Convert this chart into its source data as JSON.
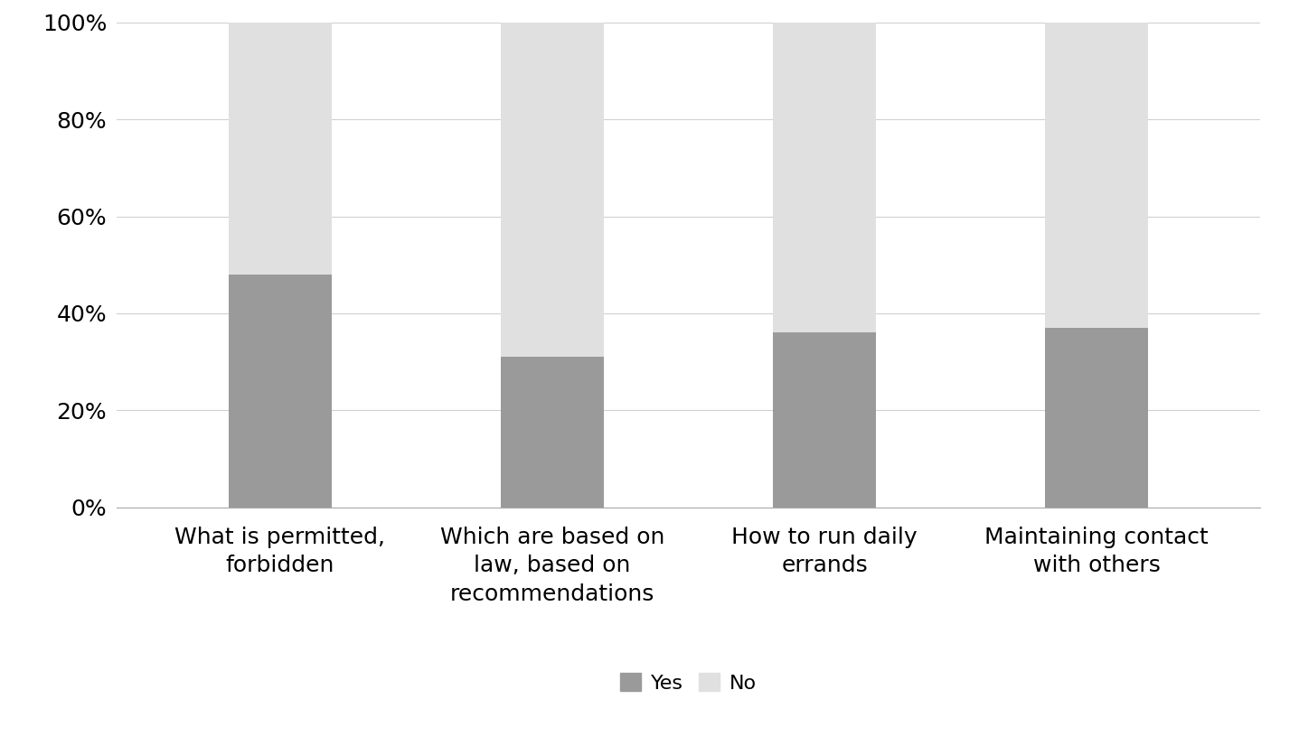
{
  "categories": [
    "What is permitted,\nforbidden",
    "Which are based on\nlaw, based on\nrecommendations",
    "How to run daily\nerrands",
    "Maintaining contact\nwith others"
  ],
  "yes_values": [
    0.48,
    0.31,
    0.36,
    0.37
  ],
  "no_values": [
    0.52,
    0.69,
    0.64,
    0.63
  ],
  "yes_color": "#9a9a9a",
  "no_color": "#e0e0e0",
  "bar_width": 0.38,
  "ylim": [
    0,
    1.0
  ],
  "yticks": [
    0.0,
    0.2,
    0.4,
    0.6,
    0.8,
    1.0
  ],
  "yticklabels": [
    "0%",
    "20%",
    "40%",
    "60%",
    "80%",
    "100%"
  ],
  "legend_yes": "Yes",
  "legend_no": "No",
  "background_color": "#ffffff",
  "grid_color": "#d0d0d0",
  "tick_fontsize": 18,
  "label_fontsize": 18,
  "legend_fontsize": 16
}
